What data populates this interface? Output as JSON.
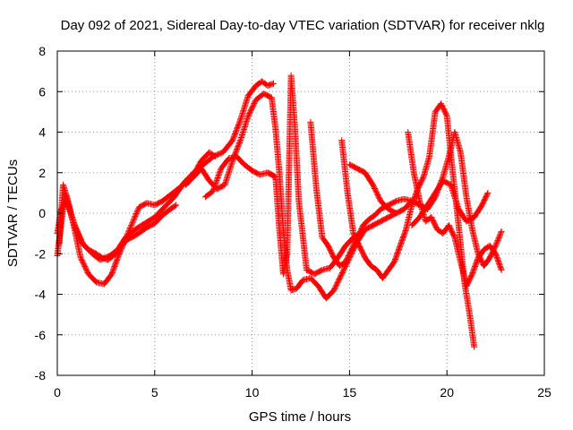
{
  "chart_data": {
    "type": "scatter",
    "title": "Day 092 of 2021, Sidereal Day-to-day VTEC variation (SDTVAR) for receiver nklg",
    "xlabel": "GPS time / hours",
    "ylabel": "SDTVAR / TECUs",
    "xlim": [
      0,
      25
    ],
    "ylim": [
      -8,
      8
    ],
    "xticks": [
      "0",
      "5",
      "10",
      "15",
      "20",
      "25"
    ],
    "yticks": [
      "-8",
      "-6",
      "-4",
      "-2",
      "0",
      "2",
      "4",
      "6",
      "8"
    ],
    "grid": true,
    "marker": "+",
    "colors": {
      "series": "#ff0000",
      "grid": "#a0a0a0",
      "axis": "#000000"
    },
    "series": [
      {
        "x": [
          0.0,
          0.2,
          0.4,
          0.6,
          0.8,
          1.0,
          1.3,
          1.6,
          2.0,
          2.3,
          2.6,
          3.0,
          3.3,
          3.6,
          4.0,
          4.3,
          4.6,
          5.0,
          5.4,
          5.8,
          6.1
        ],
        "y": [
          -2.1,
          -0.5,
          0.9,
          0.3,
          -0.4,
          -0.9,
          -1.5,
          -1.8,
          -2.0,
          -2.2,
          -2.3,
          -2.0,
          -1.6,
          -1.3,
          -1.1,
          -0.9,
          -0.7,
          -0.5,
          -0.1,
          0.2,
          0.4
        ]
      },
      {
        "x": [
          0.1,
          0.3,
          0.5,
          0.8,
          1.2,
          1.6,
          2.0,
          2.4,
          2.8,
          3.1,
          3.4,
          3.8,
          4.2,
          4.6,
          5.0,
          5.4,
          5.8,
          6.2,
          6.6,
          7.0,
          7.4,
          7.8,
          8.1
        ],
        "y": [
          -1.5,
          1.4,
          0.8,
          -0.4,
          -2.2,
          -3.0,
          -3.4,
          -3.5,
          -3.0,
          -2.2,
          -1.5,
          -0.6,
          0.3,
          0.5,
          0.4,
          0.6,
          0.9,
          1.2,
          1.5,
          1.9,
          2.6,
          3.0,
          2.8
        ]
      },
      {
        "x": [
          0.0,
          0.2,
          0.5,
          0.9,
          1.3,
          1.8,
          2.2,
          2.7,
          3.1,
          3.5,
          4.0,
          4.5,
          5.0,
          5.5,
          6.0,
          6.5,
          7.0,
          7.5,
          8.0,
          8.5,
          9.0,
          9.4,
          9.8,
          10.2,
          10.5,
          10.8,
          11.1
        ],
        "y": [
          -1.0,
          0.2,
          0.6,
          -0.6,
          -1.5,
          -2.0,
          -2.3,
          -2.1,
          -1.8,
          -1.2,
          -0.8,
          -0.5,
          -0.2,
          0.3,
          0.8,
          1.5,
          2.0,
          2.4,
          2.8,
          3.0,
          3.6,
          4.6,
          5.8,
          6.3,
          6.5,
          6.3,
          6.4
        ]
      },
      {
        "x": [
          6.6,
          7.0,
          7.4,
          7.8,
          8.2,
          8.6,
          9.0,
          9.4,
          9.8,
          10.2,
          10.6,
          11.0,
          11.2,
          11.4,
          11.6,
          11.8,
          12.0,
          12.3,
          12.6,
          13.0,
          13.4,
          13.8,
          14.2,
          14.6,
          15.0,
          15.4,
          15.8,
          16.2,
          16.6,
          17.0,
          17.4
        ],
        "y": [
          1.4,
          1.8,
          2.2,
          1.6,
          1.2,
          1.4,
          2.6,
          3.6,
          4.8,
          5.6,
          5.9,
          5.7,
          4.2,
          2.0,
          -0.8,
          -2.8,
          -3.8,
          -3.7,
          -3.3,
          -3.2,
          -3.6,
          -4.2,
          -3.8,
          -3.0,
          -2.2,
          -1.4,
          -0.8,
          -0.6,
          -0.4,
          -0.2,
          0.0
        ]
      },
      {
        "x": [
          7.6,
          8.0,
          8.4,
          8.8,
          9.2,
          9.6,
          10.0,
          10.4,
          10.8,
          11.0,
          11.2,
          11.4,
          11.6,
          11.8,
          12.0,
          12.2,
          12.4,
          12.8,
          13.2,
          13.6,
          14.0,
          14.4,
          14.8,
          15.2,
          15.6
        ],
        "y": [
          0.8,
          1.1,
          2.2,
          2.7,
          2.8,
          2.4,
          2.1,
          1.9,
          2.0,
          1.9,
          1.8,
          -0.8,
          -3.0,
          -2.0,
          6.8,
          4.2,
          0.6,
          -2.8,
          -3.0,
          -2.8,
          -2.7,
          -2.2,
          -1.6,
          -1.2,
          -1.0
        ]
      },
      {
        "x": [
          13.0,
          13.3,
          13.6,
          13.9,
          14.2,
          14.5,
          14.8,
          15.1,
          15.4,
          15.7,
          16.0,
          16.3,
          16.6,
          17.0,
          17.4,
          17.8,
          18.2
        ],
        "y": [
          4.5,
          1.2,
          -1.2,
          -1.6,
          -2.2,
          -2.6,
          -2.4,
          -1.8,
          -1.2,
          -0.6,
          -0.3,
          -0.1,
          0.2,
          0.4,
          0.6,
          0.7,
          0.6
        ]
      },
      {
        "x": [
          14.6,
          14.9,
          15.2,
          15.5,
          15.8,
          16.1,
          16.4,
          16.7,
          17.0,
          17.3,
          17.6,
          17.9,
          18.2,
          18.5,
          18.8,
          19.1,
          19.4,
          19.7,
          20.0,
          20.3,
          20.6,
          20.9,
          21.2,
          21.4
        ],
        "y": [
          3.6,
          1.0,
          -1.0,
          -1.6,
          -2.2,
          -2.6,
          -2.8,
          -3.2,
          -2.8,
          -2.4,
          -1.6,
          -0.8,
          0.4,
          1.2,
          1.8,
          2.8,
          5.0,
          5.4,
          4.8,
          2.0,
          -0.6,
          -3.4,
          -5.2,
          -6.6
        ]
      },
      {
        "x": [
          15.0,
          15.4,
          15.8,
          16.2,
          16.6,
          17.0,
          17.4,
          17.8,
          18.2,
          18.6,
          19.0,
          19.4,
          19.8,
          20.1,
          20.4,
          20.7,
          21.0,
          21.3,
          21.6,
          21.9,
          22.2,
          22.5,
          22.8
        ],
        "y": [
          2.4,
          2.2,
          2.0,
          1.4,
          0.6,
          0.2,
          0.0,
          0.2,
          0.6,
          0.4,
          0.2,
          0.8,
          1.8,
          2.8,
          4.0,
          3.0,
          0.8,
          -0.8,
          -2.0,
          -2.6,
          -2.2,
          -1.6,
          -0.9
        ]
      },
      {
        "x": [
          18.0,
          18.3,
          18.6,
          18.9,
          19.2,
          19.5,
          19.8,
          20.1,
          20.4,
          20.7,
          21.0,
          21.3,
          21.6,
          21.9,
          22.2,
          22.5,
          22.8
        ],
        "y": [
          4.0,
          2.0,
          0.6,
          -0.4,
          -0.2,
          -0.8,
          -1.0,
          -0.6,
          -1.2,
          -2.4,
          -3.6,
          -3.0,
          -2.2,
          -1.8,
          -1.6,
          -2.0,
          -2.8
        ]
      },
      {
        "x": [
          18.2,
          18.6,
          19.0,
          19.4,
          19.8,
          20.2,
          20.6,
          21.0,
          21.4,
          21.8,
          22.1
        ],
        "y": [
          -0.6,
          -0.2,
          0.4,
          1.0,
          1.6,
          1.4,
          0.2,
          -0.4,
          -0.2,
          0.4,
          1.0
        ]
      }
    ]
  }
}
